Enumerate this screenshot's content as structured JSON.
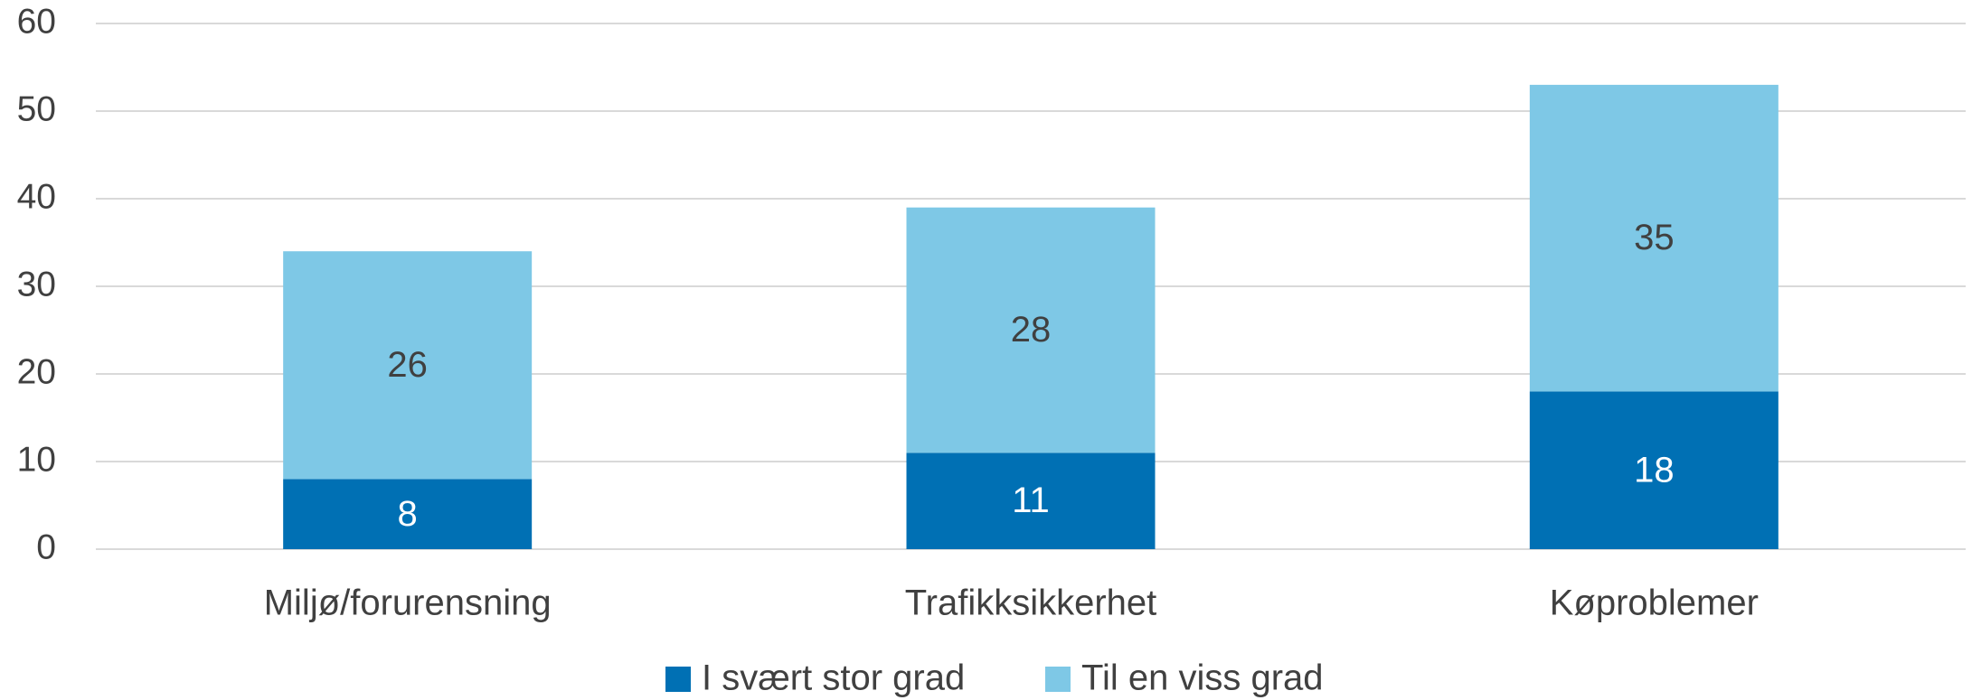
{
  "chart_data": {
    "type": "bar",
    "stacked": true,
    "categories": [
      "Miljø/forurensning",
      "Trafikksikkerhet",
      "Køproblemer"
    ],
    "series": [
      {
        "name": "I svært stor grad",
        "color": "#0070b4",
        "values": [
          8,
          11,
          18
        ]
      },
      {
        "name": "Til en viss grad",
        "color": "#7ec8e6",
        "values": [
          26,
          28,
          35
        ]
      }
    ],
    "ylim": [
      0,
      60
    ],
    "yticks": [
      0,
      10,
      20,
      30,
      40,
      50,
      60
    ],
    "grid": true,
    "legend": "bottom"
  }
}
